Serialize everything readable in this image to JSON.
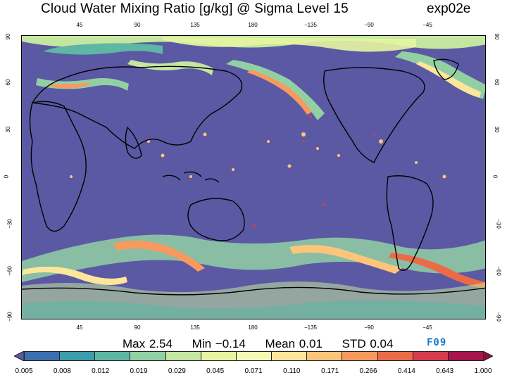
{
  "title": "Cloud Water Mixing Ratio [g/kg]  @ Sigma Level 15",
  "experiment": "exp02e",
  "badge": "F09",
  "lon_ticks": [
    "45",
    "90",
    "135",
    "180",
    "−135",
    "−90",
    "−45"
  ],
  "lat_ticks": [
    "90",
    "60",
    "30",
    "0",
    "−30",
    "−60",
    "−90"
  ],
  "stats": {
    "max": "Max 2.54",
    "min": "Min −0.14",
    "mean": "Mean 0.01",
    "std": "STD 0.04"
  },
  "colorbar": {
    "labels": [
      "0.005",
      "0.008",
      "0.012",
      "0.019",
      "0.029",
      "0.045",
      "0.071",
      "0.110",
      "0.171",
      "0.266",
      "0.414",
      "0.643",
      "1.000"
    ],
    "colors": [
      "#3b6fb0",
      "#3c9dab",
      "#5db7a3",
      "#92d0a4",
      "#c4e6a0",
      "#e7f5a1",
      "#f6f9b5",
      "#fde59a",
      "#fdc57a",
      "#f89a5e",
      "#ec6b47",
      "#d43d4f",
      "#a8154a"
    ],
    "under_color": "#5b59a3",
    "over_color": "#8a0f40"
  },
  "chart_data": {
    "type": "heatmap",
    "title": "Cloud Water Mixing Ratio [g/kg]  @ Sigma Level 15",
    "x_axis": "longitude",
    "y_axis": "latitude",
    "xlim": [
      0,
      360
    ],
    "ylim": [
      -90,
      90
    ],
    "max": 2.54,
    "min": -0.14,
    "mean": 0.01,
    "std": 0.04
  }
}
